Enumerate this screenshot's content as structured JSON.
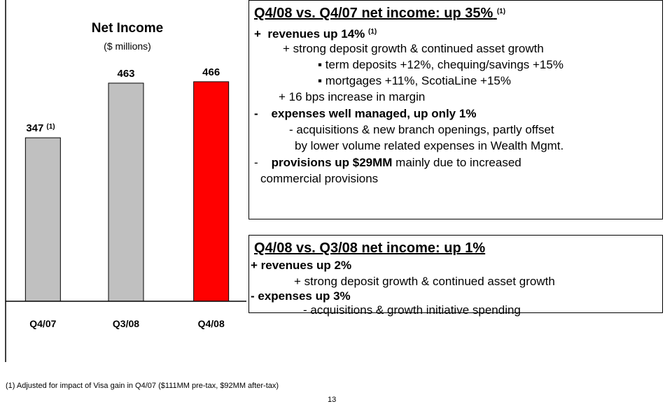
{
  "chart_data": {
    "type": "bar",
    "title": "Net Income",
    "subtitle": "($ millions)",
    "categories": [
      "Q4/07",
      "Q3/08",
      "Q4/08"
    ],
    "values": [
      347,
      463,
      466
    ],
    "colors": [
      "#c0c0c0",
      "#c0c0c0",
      "#ff0000"
    ],
    "value_note": "(1)"
  },
  "box1": {
    "heading": "Q4/08 vs. Q4/07 net income: up 35%",
    "heading_note": "(1)",
    "lines": [
      [
        "+  revenues up 14%",
        "(1)"
      ],
      [
        "+ strong deposit growth & continued asset growth"
      ],
      [
        "▪ term deposits +12%, chequing/savings +15%"
      ],
      [
        "▪ mortgages +11%, ScotiaLine +15%"
      ],
      [
        "+ 16 bps increase in margin"
      ],
      [
        "-    expenses well managed, up only 1%"
      ],
      [
        "- acquisitions & new branch openings, partly offset"
      ],
      [
        "by lower volume related expenses in Wealth Mgmt."
      ],
      [
        "-",
        "provisions up $29MM",
        " mainly due to increased"
      ],
      [
        "commercial provisions"
      ]
    ]
  },
  "box2": {
    "heading": "Q4/08 vs. Q3/08 net income: up 1%",
    "lines": [
      [
        "+ revenues up 2%"
      ],
      [
        "+ strong deposit growth & continued asset growth"
      ],
      [
        "- expenses up 3%"
      ],
      [
        "- acquisitions & growth initiative spending"
      ]
    ]
  },
  "footnote": "(1) Adjusted for impact of Visa gain in Q4/07 ($111MM pre-tax, $92MM after-tax)",
  "page_number": "13"
}
